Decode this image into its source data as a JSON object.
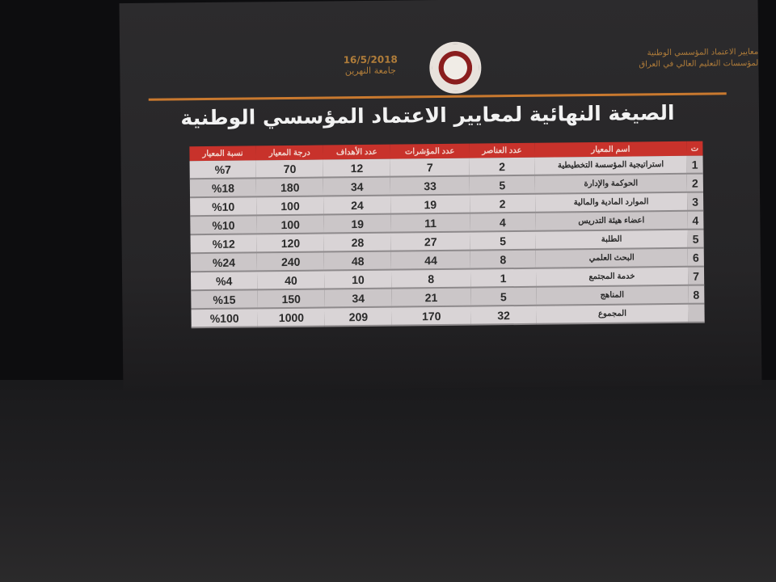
{
  "header": {
    "org_line1": "معايير الاعتماد المؤسسي الوطنية",
    "org_line2": "لمؤسسات التعليم العالي في العراق",
    "date": "16/5/2018",
    "university": "جامعة النهرين"
  },
  "title": "الصيغة النهائية لمعايير الاعتماد المؤسسي الوطنية",
  "table": {
    "columns": [
      "ت",
      "اسم المعيار",
      "عدد العناصر",
      "عدد المؤشرات",
      "عدد الأهداف",
      "درجة المعيار",
      "نسبة المعيار"
    ],
    "rows": [
      [
        "1",
        "استراتيجية المؤسسة التخطيطية",
        "2",
        "7",
        "12",
        "70",
        "%7"
      ],
      [
        "2",
        "الحوكمة والإدارة",
        "5",
        "33",
        "34",
        "180",
        "%18"
      ],
      [
        "3",
        "الموارد المادية والمالية",
        "2",
        "19",
        "24",
        "100",
        "%10"
      ],
      [
        "4",
        "اعضاء هيئة التدريس",
        "4",
        "11",
        "19",
        "100",
        "%10"
      ],
      [
        "5",
        "الطلبة",
        "5",
        "27",
        "28",
        "120",
        "%12"
      ],
      [
        "6",
        "البحث العلمي",
        "8",
        "44",
        "48",
        "240",
        "%24"
      ],
      [
        "7",
        "خدمة المجتمع",
        "1",
        "8",
        "10",
        "40",
        "%4"
      ],
      [
        "8",
        "المناهج",
        "5",
        "21",
        "34",
        "150",
        "%15"
      ],
      [
        "",
        "المجموع",
        "32",
        "170",
        "209",
        "1000",
        "%100"
      ]
    ]
  },
  "colors": {
    "header_red": "#c8322b",
    "rule_orange": "#c9792f"
  }
}
